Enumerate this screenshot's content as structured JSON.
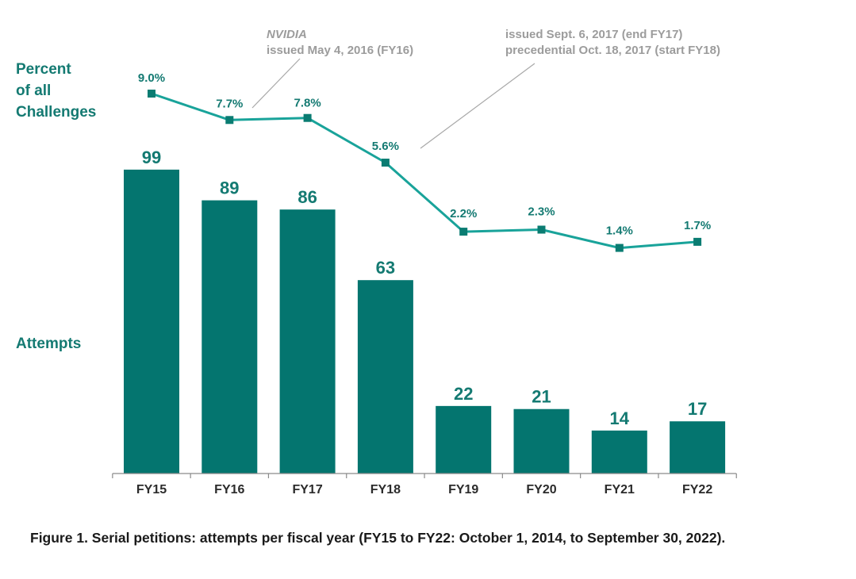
{
  "chart_data": {
    "type": "bar",
    "categories": [
      "FY15",
      "FY16",
      "FY17",
      "FY18",
      "FY19",
      "FY20",
      "FY21",
      "FY22"
    ],
    "series": [
      {
        "name": "Attempts",
        "type": "bar",
        "values": [
          99,
          89,
          86,
          63,
          22,
          21,
          14,
          17
        ]
      },
      {
        "name": "Percent of all Challenges",
        "type": "line",
        "values": [
          9.0,
          7.7,
          7.8,
          5.6,
          2.2,
          2.3,
          1.4,
          1.7
        ]
      }
    ],
    "percent_labels": [
      "9.0%",
      "7.7%",
      "7.8%",
      "5.6%",
      "2.2%",
      "2.3%",
      "1.4%",
      "1.7%"
    ],
    "axis_titles": {
      "percent": [
        "Percent",
        "of all",
        "Challenges"
      ],
      "attempts": "Attempts"
    },
    "annotations": [
      {
        "lines": [
          "NVIDIA",
          "issued May 4, 2016 (FY16)"
        ],
        "points_to": "FY16"
      },
      {
        "lines": [
          "issued Sept. 6, 2017 (end FY17)",
          "precedential Oct. 18, 2017 (start FY18)"
        ],
        "points_to": "FY18"
      }
    ],
    "grid": false,
    "caption": "Figure 1. Serial petitions: attempts per fiscal year (FY15 to FY22: October 1, 2014, to September 30, 2022).",
    "colors": {
      "bar": "#04756f",
      "line": "#19a39a",
      "marker": "#0a7c72",
      "label": "#147a72",
      "annotation": "#9c9c9c"
    }
  }
}
